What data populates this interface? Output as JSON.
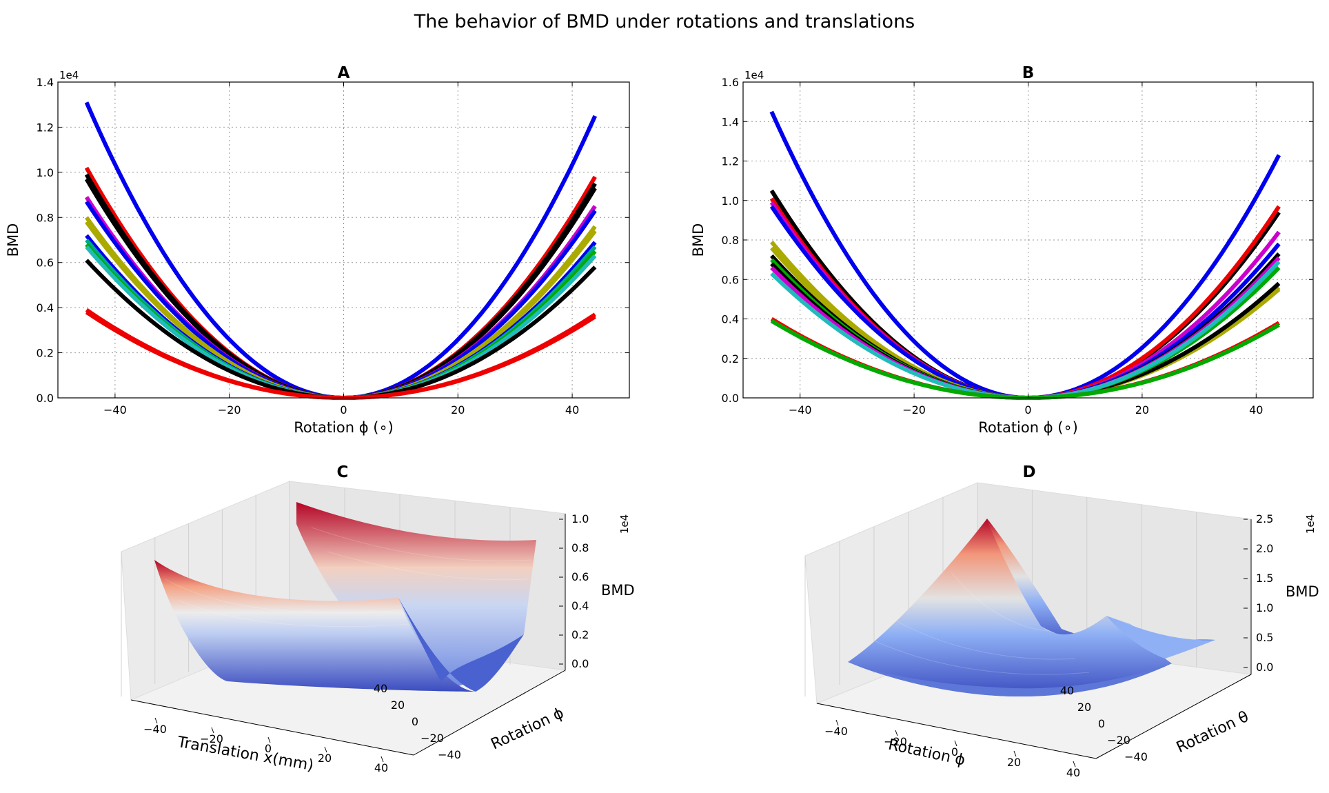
{
  "suptitle": "The behavior of BMD under rotations and translations",
  "chart_data": [
    {
      "panel": "A",
      "type": "line",
      "title": "A",
      "xlabel": "Rotation ϕ (∘)",
      "ylabel": "BMD",
      "exponent_label": "1e4",
      "xlim": [
        -50,
        50
      ],
      "ylim": [
        0,
        14000
      ],
      "xticks": [
        "−40",
        "−20",
        "0",
        "20",
        "40"
      ],
      "yticks": [
        "0.0",
        "0.2",
        "0.4",
        "0.6",
        "0.8",
        "1.0",
        "1.2",
        "1.4"
      ],
      "grid": true,
      "x_range": [
        -45,
        44
      ],
      "series": [
        {
          "color": "#0000ee",
          "left": 13100,
          "right": 12500
        },
        {
          "color": "#ee0000",
          "left": 10200,
          "right": 9800
        },
        {
          "color": "#000000",
          "left": 9900,
          "right": 9500
        },
        {
          "color": "#000000",
          "left": 9700,
          "right": 9300
        },
        {
          "color": "#cc00cc",
          "left": 8900,
          "right": 8500
        },
        {
          "color": "#0000ee",
          "left": 8700,
          "right": 8300
        },
        {
          "color": "#aaaa00",
          "left": 8000,
          "right": 7600
        },
        {
          "color": "#aaaa00",
          "left": 7800,
          "right": 7400
        },
        {
          "color": "#0000ee",
          "left": 7200,
          "right": 6900
        },
        {
          "color": "#00aa88",
          "left": 7000,
          "right": 6700
        },
        {
          "color": "#00aa00",
          "left": 6800,
          "right": 6500
        },
        {
          "color": "#22bbbb",
          "left": 6700,
          "right": 6300
        },
        {
          "color": "#000000",
          "left": 6100,
          "right": 5800
        },
        {
          "color": "#ee0000",
          "left": 3900,
          "right": 3700
        },
        {
          "color": "#ee0000",
          "left": 3800,
          "right": 3600
        }
      ]
    },
    {
      "panel": "B",
      "type": "line",
      "title": "B",
      "xlabel": "Rotation ϕ (∘)",
      "ylabel": "BMD",
      "exponent_label": "1e4",
      "xlim": [
        -50,
        50
      ],
      "ylim": [
        0,
        16000
      ],
      "xticks": [
        "−40",
        "−20",
        "0",
        "20",
        "40"
      ],
      "yticks": [
        "0.0",
        "0.2",
        "0.4",
        "0.6",
        "0.8",
        "1.0",
        "1.2",
        "1.4",
        "1.6"
      ],
      "grid": true,
      "x_range": [
        -45,
        44
      ],
      "series": [
        {
          "color": "#0000ee",
          "left": 14500,
          "right": 12300
        },
        {
          "color": "#000000",
          "left": 10500,
          "right": 9400
        },
        {
          "color": "#ee0000",
          "left": 10100,
          "right": 9700
        },
        {
          "color": "#cc00cc",
          "left": 9900,
          "right": 8400
        },
        {
          "color": "#0000ee",
          "left": 9700,
          "right": 7800
        },
        {
          "color": "#aaaa00",
          "left": 7900,
          "right": 5600
        },
        {
          "color": "#aaaa00",
          "left": 7600,
          "right": 5500
        },
        {
          "color": "#000000",
          "left": 7200,
          "right": 5800
        },
        {
          "color": "#00aa00",
          "left": 7000,
          "right": 6600
        },
        {
          "color": "#000000",
          "left": 6800,
          "right": 7300
        },
        {
          "color": "#cc00cc",
          "left": 6600,
          "right": 7100
        },
        {
          "color": "#22bbbb",
          "left": 6300,
          "right": 6900
        },
        {
          "color": "#ee0000",
          "left": 4000,
          "right": 3800
        },
        {
          "color": "#00aa00",
          "left": 3900,
          "right": 3700
        }
      ]
    },
    {
      "panel": "C",
      "type": "surface",
      "title": "C",
      "xlabel": "Translation x(mm)",
      "ylabel": "Rotation ϕ",
      "zlabel": "BMD",
      "exponent_label": "1e4",
      "xlim": [
        -50,
        50
      ],
      "ylim": [
        -50,
        50
      ],
      "zlim": [
        0,
        10000
      ],
      "xticks": [
        "−40",
        "−20",
        "0",
        "20",
        "40"
      ],
      "yticks": [
        "−40",
        "−20",
        "0",
        "20",
        "40"
      ],
      "zticks": [
        "0.0",
        "0.2",
        "0.4",
        "0.6",
        "0.8",
        "1.0"
      ],
      "colormap": [
        "#3b4cc0",
        "#dddddd",
        "#b40426"
      ]
    },
    {
      "panel": "D",
      "type": "surface",
      "title": "D",
      "xlabel": "Rotation ϕ",
      "ylabel": "Rotation θ",
      "zlabel": "BMD",
      "exponent_label": "1e4",
      "xlim": [
        -50,
        50
      ],
      "ylim": [
        -50,
        50
      ],
      "zlim": [
        0,
        25000
      ],
      "xticks": [
        "−40",
        "−20",
        "0",
        "20",
        "40"
      ],
      "yticks": [
        "−40",
        "−20",
        "0",
        "20",
        "40"
      ],
      "zticks": [
        "0.0",
        "0.5",
        "1.0",
        "1.5",
        "2.0",
        "2.5"
      ],
      "colormap": [
        "#3b4cc0",
        "#dddddd",
        "#b40426"
      ]
    }
  ]
}
